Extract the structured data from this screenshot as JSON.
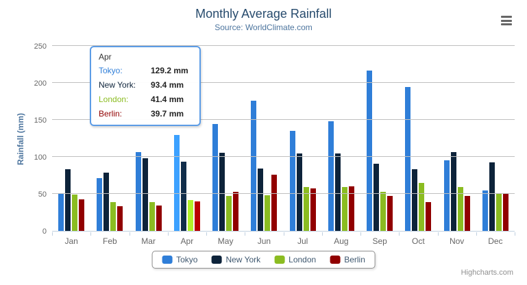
{
  "header": {
    "title": "Monthly Average Rainfall",
    "subtitle": "Source: WorldClimate.com"
  },
  "chart_data": {
    "type": "bar",
    "title": "Monthly Average Rainfall",
    "subtitle": "Source: WorldClimate.com",
    "xlabel": "",
    "ylabel": "Rainfall (mm)",
    "ylim": [
      0,
      250
    ],
    "yticks": [
      0,
      50,
      100,
      150,
      200,
      250
    ],
    "grid": true,
    "legend_position": "bottom",
    "value_suffix": "mm",
    "categories": [
      "Jan",
      "Feb",
      "Mar",
      "Apr",
      "May",
      "Jun",
      "Jul",
      "Aug",
      "Sep",
      "Oct",
      "Nov",
      "Dec"
    ],
    "hovered_category": "Apr",
    "series": [
      {
        "name": "Tokyo",
        "color": "#2f7ed8",
        "values": [
          49.9,
          71.5,
          106.4,
          129.2,
          144.0,
          176.0,
          135.6,
          148.5,
          216.4,
          194.1,
          95.6,
          54.4
        ]
      },
      {
        "name": "New York",
        "color": "#0d233a",
        "values": [
          83.6,
          78.8,
          98.5,
          93.4,
          106.0,
          84.5,
          105.0,
          104.3,
          91.2,
          83.5,
          106.6,
          92.3
        ]
      },
      {
        "name": "London",
        "color": "#8bbc21",
        "values": [
          48.9,
          38.8,
          39.3,
          41.4,
          47.0,
          48.3,
          59.0,
          59.6,
          52.4,
          65.2,
          59.3,
          51.2
        ]
      },
      {
        "name": "Berlin",
        "color": "#910000",
        "values": [
          42.4,
          33.2,
          34.5,
          39.7,
          52.6,
          75.5,
          57.4,
          60.4,
          47.6,
          39.1,
          46.8,
          51.1
        ]
      }
    ]
  },
  "tooltip": {
    "header": "Apr",
    "rows": [
      {
        "label": "Tokyo:",
        "value": "129.2 mm",
        "color": "#2f7ed8"
      },
      {
        "label": "New York:",
        "value": "93.4 mm",
        "color": "#0d233a"
      },
      {
        "label": "London:",
        "value": "41.4 mm",
        "color": "#8bbc21"
      },
      {
        "label": "Berlin:",
        "value": "39.7 mm",
        "color": "#910000"
      }
    ]
  },
  "colors": {
    "title": "#274b6d",
    "subtitle": "#4d759e",
    "axis_label": "#666666",
    "gridline": "#C0C0C0",
    "axis_line": "#C0D0E0",
    "legend_text": "#3E576F",
    "tooltip_border": "#5C9CE6",
    "credits": "#909090"
  },
  "credits": "Highcharts.com"
}
